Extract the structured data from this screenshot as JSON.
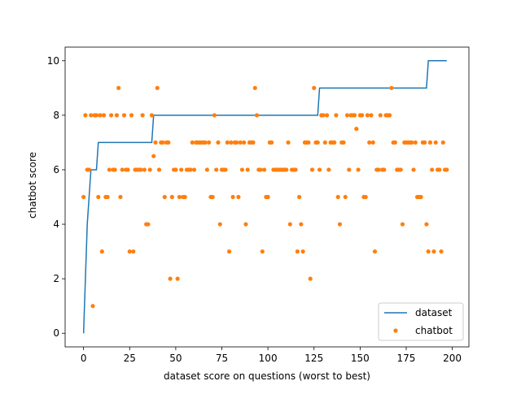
{
  "chart_data": {
    "type": "scatter",
    "xlabel": "dataset score on questions (worst to best)",
    "ylabel": "chatbot score",
    "xlim": [
      -10,
      209
    ],
    "ylim": [
      -0.5,
      10.5
    ],
    "xticks": [
      0,
      25,
      50,
      75,
      100,
      125,
      150,
      175,
      200
    ],
    "yticks": [
      0,
      2,
      4,
      6,
      8,
      10
    ],
    "legend_position": "lower-right",
    "series": [
      {
        "name": "dataset",
        "kind": "line",
        "color": "#1f77b4",
        "x": [
          0,
          1,
          2,
          3,
          4,
          5,
          6,
          7,
          8,
          37,
          38,
          127,
          128,
          186,
          187,
          197
        ],
        "y": [
          0,
          2,
          4,
          5,
          6,
          6,
          6,
          6,
          7,
          7,
          8,
          8,
          9,
          9,
          10,
          10
        ]
      },
      {
        "name": "chatbot",
        "kind": "scatter",
        "color": "#ff7f0e",
        "x": [
          0,
          1,
          2,
          3,
          4,
          5,
          6,
          7,
          8,
          9,
          10,
          11,
          12,
          13,
          14,
          15,
          16,
          17,
          18,
          19,
          20,
          21,
          22,
          23,
          24,
          25,
          26,
          27,
          28,
          29,
          30,
          31,
          32,
          33,
          34,
          35,
          36,
          37,
          38,
          39,
          40,
          41,
          42,
          43,
          44,
          45,
          46,
          47,
          48,
          49,
          50,
          51,
          52,
          53,
          54,
          55,
          56,
          57,
          58,
          59,
          60,
          61,
          62,
          63,
          64,
          65,
          66,
          67,
          68,
          69,
          70,
          71,
          72,
          73,
          74,
          75,
          76,
          77,
          78,
          79,
          80,
          81,
          82,
          83,
          84,
          85,
          86,
          87,
          88,
          89,
          90,
          91,
          92,
          93,
          94,
          95,
          96,
          97,
          98,
          99,
          100,
          101,
          102,
          103,
          104,
          105,
          106,
          107,
          108,
          109,
          110,
          111,
          112,
          113,
          114,
          115,
          116,
          117,
          118,
          119,
          120,
          121,
          122,
          123,
          124,
          125,
          126,
          127,
          128,
          129,
          130,
          131,
          132,
          133,
          134,
          135,
          136,
          137,
          138,
          139,
          140,
          141,
          142,
          143,
          144,
          145,
          146,
          147,
          148,
          149,
          150,
          151,
          152,
          153,
          154,
          155,
          156,
          157,
          158,
          159,
          160,
          161,
          162,
          163,
          164,
          165,
          166,
          167,
          168,
          169,
          170,
          171,
          172,
          173,
          174,
          175,
          176,
          177,
          178,
          179,
          180,
          181,
          182,
          183,
          184,
          185,
          186,
          187,
          188,
          189,
          190,
          191,
          192,
          193,
          194,
          195,
          196,
          197
        ],
        "y": [
          5,
          8,
          6,
          6,
          8,
          1,
          8,
          8,
          5,
          8,
          3,
          8,
          5,
          5,
          6,
          8,
          6,
          6,
          8,
          9,
          5,
          6,
          8,
          6,
          6,
          3,
          8,
          3,
          6,
          6,
          6,
          6,
          8,
          6,
          4,
          4,
          6,
          8,
          6.5,
          7,
          9,
          6,
          7,
          7,
          5,
          7,
          7,
          2,
          5,
          6,
          6,
          2,
          5,
          6,
          5,
          5,
          6,
          6,
          6,
          7,
          6,
          7,
          7,
          7,
          7,
          7,
          7,
          6,
          7,
          5,
          5,
          8,
          6,
          7,
          4,
          6,
          6,
          6,
          7,
          3,
          7,
          5,
          7,
          7,
          5,
          7,
          6,
          7,
          4,
          6,
          7,
          7,
          7,
          9,
          8,
          6,
          6,
          3,
          6,
          5,
          5,
          7,
          7,
          6,
          6,
          6,
          6,
          6,
          6,
          6,
          6,
          7,
          4,
          6,
          6,
          6,
          3,
          5,
          4,
          3,
          7,
          7,
          7,
          2,
          6,
          9,
          7,
          7,
          6,
          8,
          8,
          7,
          8,
          6,
          7,
          7,
          7,
          8,
          5,
          4,
          7,
          7,
          5,
          8,
          6,
          8,
          8,
          8,
          7.5,
          6,
          8,
          8,
          5,
          5,
          8,
          7,
          8,
          7,
          3,
          6,
          6,
          8,
          6,
          6,
          8,
          8,
          8,
          9,
          7,
          7,
          6,
          6,
          6,
          4,
          7,
          7,
          7,
          7,
          7,
          6,
          7,
          5,
          5,
          5,
          7,
          7,
          4,
          3,
          7,
          6,
          3,
          7,
          6,
          6,
          3,
          7,
          6,
          6
        ]
      }
    ]
  }
}
